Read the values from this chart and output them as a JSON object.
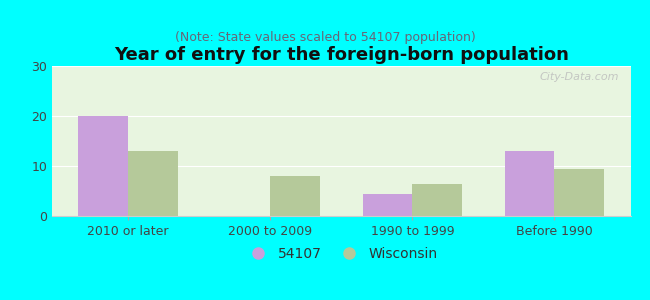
{
  "title": "Year of entry for the foreign-born population",
  "subtitle": "(Note: State values scaled to 54107 population)",
  "categories": [
    "2010 or later",
    "2000 to 2009",
    "1990 to 1999",
    "Before 1990"
  ],
  "values_54107": [
    20,
    0,
    4.5,
    13
  ],
  "values_wisconsin": [
    13,
    8,
    6.5,
    9.5
  ],
  "color_54107": "#c9a0dc",
  "color_wisconsin": "#b5c99a",
  "background_outer": "#00ffff",
  "background_inner": "#e8f5e0",
  "ylim": [
    0,
    30
  ],
  "yticks": [
    0,
    10,
    20,
    30
  ],
  "bar_width": 0.35,
  "legend_label_54107": "54107",
  "legend_label_wisconsin": "Wisconsin",
  "title_fontsize": 13,
  "subtitle_fontsize": 9,
  "tick_label_fontsize": 9,
  "legend_fontsize": 10,
  "watermark": "City-Data.com"
}
